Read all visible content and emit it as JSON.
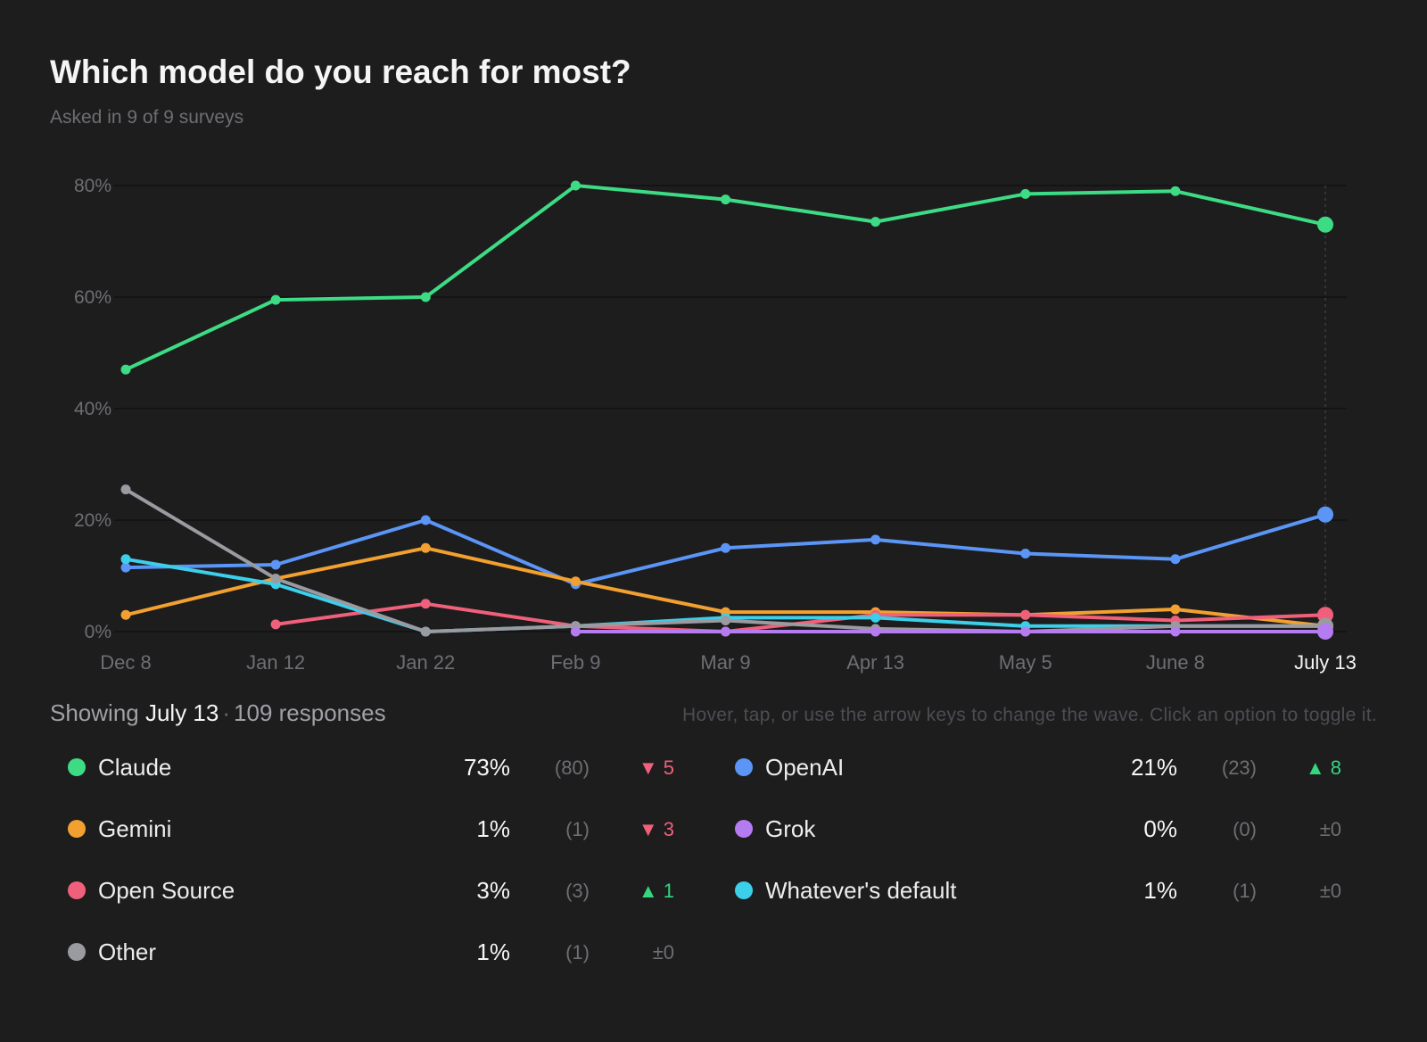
{
  "header": {
    "title": "Which model do you reach for most?",
    "subtitle": "Asked in 9 of 9 surveys"
  },
  "status": {
    "prefix": "Showing",
    "date": "July 13",
    "separator": "·",
    "responses": "109 responses",
    "hint": "Hover, tap, or use the arrow keys to change the wave. Click an option to toggle it."
  },
  "legend": [
    {
      "name": "Claude",
      "pct": "73%",
      "count": "(80)",
      "delta": "▼ 5",
      "trend": "down",
      "color": "#3ddc84"
    },
    {
      "name": "OpenAI",
      "pct": "21%",
      "count": "(23)",
      "delta": "▲ 8",
      "trend": "up",
      "color": "#5b95f5"
    },
    {
      "name": "Gemini",
      "pct": "1%",
      "count": "(1)",
      "delta": "▼ 3",
      "trend": "down",
      "color": "#f2a030"
    },
    {
      "name": "Grok",
      "pct": "0%",
      "count": "(0)",
      "delta": "±0",
      "trend": "flat",
      "color": "#b57bf0"
    },
    {
      "name": "Open Source",
      "pct": "3%",
      "count": "(3)",
      "delta": "▲ 1",
      "trend": "up",
      "color": "#f0607a"
    },
    {
      "name": "Whatever's default",
      "pct": "1%",
      "count": "(1)",
      "delta": "±0",
      "trend": "flat",
      "color": "#3ccfea"
    },
    {
      "name": "Other",
      "pct": "1%",
      "count": "(1)",
      "delta": "±0",
      "trend": "flat",
      "color": "#9a9ba1"
    }
  ],
  "chart_data": {
    "type": "line",
    "x": [
      "Dec 8",
      "Jan 12",
      "Jan 22",
      "Feb 9",
      "Mar 9",
      "Apr 13",
      "May 5",
      "June 8",
      "July 13"
    ],
    "y_ticks": [
      "0%",
      "20%",
      "40%",
      "60%",
      "80%"
    ],
    "ylim": [
      0,
      80
    ],
    "grid": true,
    "selected_index": 8,
    "series": [
      {
        "name": "Claude",
        "color": "#3ddc84",
        "values": [
          47,
          59.5,
          60,
          80,
          77.5,
          73.5,
          78.5,
          79,
          73
        ]
      },
      {
        "name": "OpenAI",
        "color": "#5b95f5",
        "values": [
          11.5,
          12,
          20,
          8.5,
          15,
          16.5,
          14,
          13,
          21
        ]
      },
      {
        "name": "Gemini",
        "color": "#f2a030",
        "values": [
          3,
          9.5,
          15,
          9,
          3.5,
          3.5,
          3,
          4,
          1
        ]
      },
      {
        "name": "Open Source",
        "color": "#f0607a",
        "values": [
          null,
          1.3,
          5,
          1,
          0,
          3,
          3,
          2,
          3
        ]
      },
      {
        "name": "Whatever's default",
        "color": "#3ccfea",
        "values": [
          13,
          8.5,
          0,
          1,
          2.5,
          2.5,
          1,
          1,
          1
        ]
      },
      {
        "name": "Other",
        "color": "#9a9ba1",
        "values": [
          25.5,
          9.5,
          0,
          1,
          2,
          0.5,
          0,
          1,
          1
        ]
      },
      {
        "name": "Grok",
        "color": "#b57bf0",
        "values": [
          null,
          null,
          null,
          0,
          0,
          0,
          0,
          0,
          0
        ]
      }
    ]
  }
}
